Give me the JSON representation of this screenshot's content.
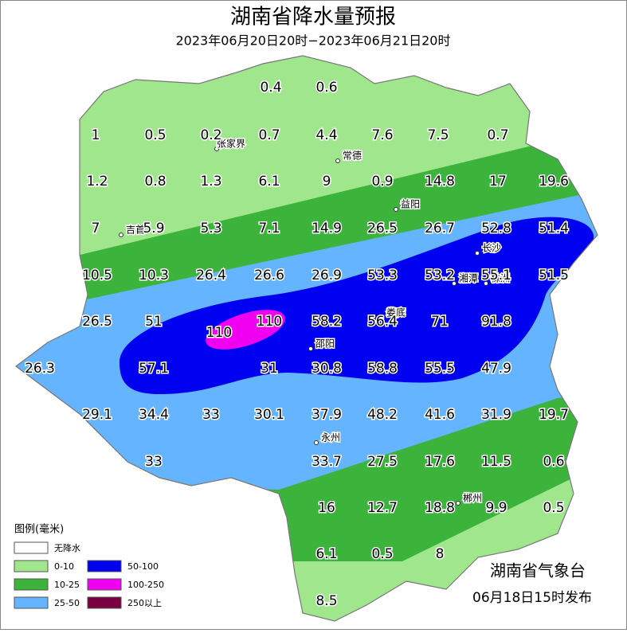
{
  "header": {
    "title": "湖南省降水量预报",
    "subtitle": "2023年06月20日20时−2023年06月21日20时"
  },
  "map": {
    "values": [
      0.4,
      0.6,
      1,
      0.5,
      0.2,
      0.7,
      4.4,
      7.6,
      7.5,
      0.7,
      1.2,
      0.8,
      1.3,
      6.1,
      9,
      0.9,
      14.8,
      17,
      19.6,
      7,
      5.9,
      5.3,
      7.1,
      14.9,
      26.5,
      26.7,
      52.8,
      51.4,
      10.5,
      10.3,
      26.4,
      26.6,
      26.9,
      53.3,
      53.2,
      55.1,
      51.5,
      26.5,
      51,
      110,
      110,
      58.2,
      56.4,
      71,
      91.8,
      26.3,
      57.1,
      31,
      30.8,
      58.8,
      55.5,
      47.9,
      29.1,
      34.4,
      33,
      30.1,
      37.9,
      48.2,
      41.6,
      31.9,
      19.7,
      33,
      33.7,
      27.5,
      17.6,
      11.5,
      0.6,
      16,
      12.7,
      18.8,
      9.9,
      0.5,
      6.1,
      0.5,
      8,
      8.5
    ],
    "cities": [
      "张家界",
      "常德",
      "益阳",
      "吉首",
      "长沙",
      "湘潭",
      "株洲",
      "娄底",
      "邵阳",
      "永州",
      "郴州"
    ]
  },
  "legend": {
    "title": "图例(毫米)",
    "items": [
      {
        "label": "无降水",
        "color": "#ffffff"
      },
      {
        "label": "0-10",
        "color": "#a0e68c"
      },
      {
        "label": "10-25",
        "color": "#3cb43c"
      },
      {
        "label": "25-50",
        "color": "#64b4ff"
      },
      {
        "label": "50-100",
        "color": "#0000f0"
      },
      {
        "label": "100-250",
        "color": "#f000f0"
      },
      {
        "label": "250以上",
        "color": "#780040"
      }
    ]
  },
  "footer": {
    "agency": "湖南省气象台",
    "issued": "06月18日15时发布"
  }
}
